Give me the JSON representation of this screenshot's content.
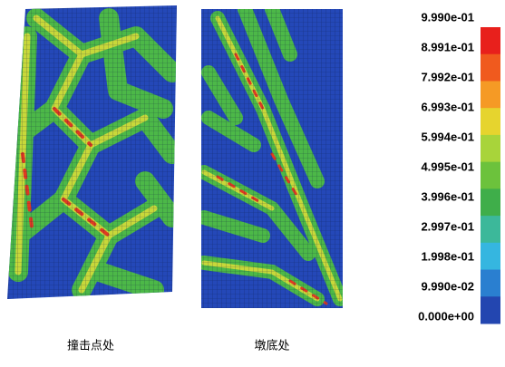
{
  "panels": [
    {
      "caption": "撞击点处"
    },
    {
      "caption": "墩底处"
    }
  ],
  "colorbar": {
    "labels": [
      "9.990e-01",
      "8.991e-01",
      "7.992e-01",
      "6.993e-01",
      "5.994e-01",
      "4.995e-01",
      "3.996e-01",
      "2.997e-01",
      "1.998e-01",
      "9.990e-02",
      "0.000e+00"
    ],
    "colors": [
      "#e8201c",
      "#f05a1e",
      "#f59a25",
      "#e6d42e",
      "#a8d43a",
      "#6cc23c",
      "#3fae4a",
      "#3cb89a",
      "#35b6e0",
      "#2a7fd0",
      "#2346b0"
    ]
  }
}
